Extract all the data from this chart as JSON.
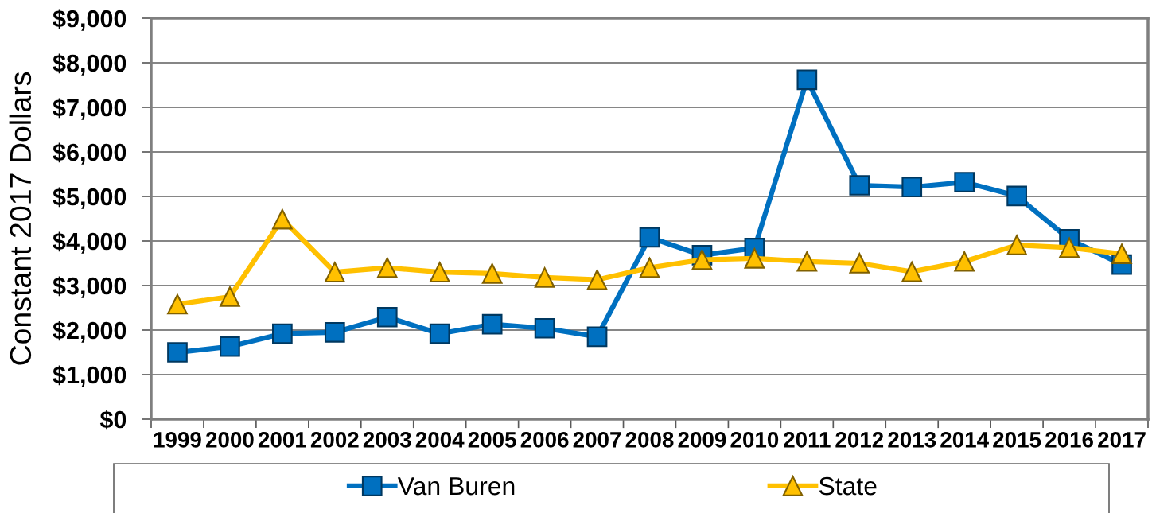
{
  "chart_data": {
    "type": "line",
    "ylabel": "Constant 2017 Dollars",
    "categories": [
      "1999",
      "2000",
      "2001",
      "2002",
      "2003",
      "2004",
      "2005",
      "2006",
      "2007",
      "2008",
      "2009",
      "2010",
      "2011",
      "2012",
      "2013",
      "2014",
      "2015",
      "2016",
      "2017"
    ],
    "series": [
      {
        "name": "Van Buren",
        "color": "#0070c0",
        "marker": "square",
        "values": [
          1500,
          1630,
          1920,
          1950,
          2290,
          1920,
          2130,
          2040,
          1850,
          4080,
          3680,
          3840,
          7620,
          5250,
          5210,
          5320,
          5010,
          4040,
          3470
        ]
      },
      {
        "name": "State",
        "color": "#ffc000",
        "marker": "triangle",
        "values": [
          2580,
          2750,
          4490,
          3300,
          3400,
          3300,
          3270,
          3180,
          3130,
          3400,
          3580,
          3610,
          3540,
          3500,
          3310,
          3540,
          3910,
          3850,
          3710
        ]
      }
    ],
    "ylim": [
      0,
      9000
    ],
    "yticks": [
      {
        "value": 0,
        "label": "$0"
      },
      {
        "value": 1000,
        "label": "$1,000"
      },
      {
        "value": 2000,
        "label": "$2,000"
      },
      {
        "value": 3000,
        "label": "$3,000"
      },
      {
        "value": 4000,
        "label": "$4,000"
      },
      {
        "value": 5000,
        "label": "$5,000"
      },
      {
        "value": 6000,
        "label": "$6,000"
      },
      {
        "value": 7000,
        "label": "$7,000"
      },
      {
        "value": 8000,
        "label": "$8,000"
      },
      {
        "value": 9000,
        "label": "$9,000"
      }
    ],
    "grid": "y",
    "legend": "bottom",
    "line_style": "solid"
  }
}
